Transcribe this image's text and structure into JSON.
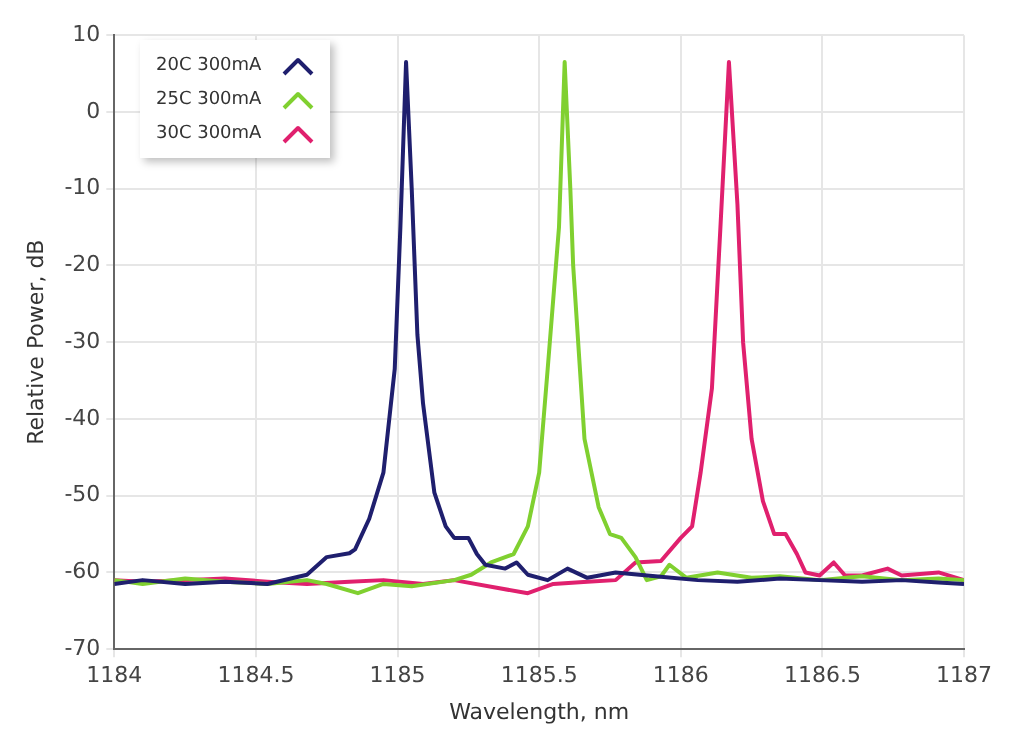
{
  "chart_data": {
    "type": "line",
    "xlabel": "Wavelength, nm",
    "ylabel": "Relative Power, dB",
    "xlim": [
      1184,
      1187
    ],
    "xticks": [
      1184,
      1184.5,
      1185,
      1185.5,
      1186,
      1186.5,
      1187
    ],
    "ylim": [
      -70,
      10
    ],
    "yticks": [
      -70,
      -60,
      -50,
      -40,
      -30,
      -20,
      -10,
      0,
      10
    ],
    "grid": true,
    "legend": "top left",
    "marker": "none",
    "line_style": "solid",
    "series": [
      {
        "name": "20C 300mA",
        "color": "#1f1f6e",
        "x": [
          1184,
          1184.1,
          1184.25,
          1184.39,
          1184.54,
          1184.68,
          1184.75,
          1184.83,
          1184.85,
          1184.9,
          1184.95,
          1184.99,
          1185.01,
          1185.03,
          1185.05,
          1185.07,
          1185.09,
          1185.13,
          1185.17,
          1185.2,
          1185.25,
          1185.28,
          1185.31,
          1185.38,
          1185.42,
          1185.46,
          1185.53,
          1185.6,
          1185.67,
          1185.77,
          1185.91,
          1186.06,
          1186.2,
          1186.35,
          1186.49,
          1186.64,
          1186.78,
          1186.91,
          1187
        ],
        "values": [
          -61.5,
          -61,
          -61.5,
          -61.2,
          -61.5,
          -60.3,
          -58,
          -57.5,
          -57,
          -53,
          -47,
          -33.5,
          -15,
          6.5,
          -10,
          -29,
          -38,
          -49.6,
          -54,
          -55.5,
          -55.5,
          -57.6,
          -59,
          -59.5,
          -58.7,
          -60.3,
          -61,
          -59.5,
          -60.7,
          -60,
          -60.5,
          -61,
          -61.2,
          -60.8,
          -61,
          -61.2,
          -61,
          -61.3,
          -61.5
        ]
      },
      {
        "name": "25C 300mA",
        "color": "#80d030",
        "x": [
          1184,
          1184.1,
          1184.25,
          1184.39,
          1184.54,
          1184.68,
          1184.75,
          1184.86,
          1184.95,
          1185.05,
          1185.2,
          1185.26,
          1185.33,
          1185.41,
          1185.46,
          1185.5,
          1185.53,
          1185.57,
          1185.59,
          1185.61,
          1185.62,
          1185.66,
          1185.71,
          1185.75,
          1185.79,
          1185.84,
          1185.88,
          1185.93,
          1185.96,
          1186.02,
          1186.13,
          1186.25,
          1186.35,
          1186.49,
          1186.64,
          1186.78,
          1186.91,
          1187
        ],
        "values": [
          -61,
          -61.5,
          -60.8,
          -61.2,
          -61.5,
          -61,
          -61.5,
          -62.7,
          -61.5,
          -61.8,
          -61,
          -60.3,
          -58.7,
          -57.6,
          -54,
          -47,
          -33.5,
          -15,
          6.5,
          -10,
          -20,
          -42.6,
          -51.5,
          -55,
          -55.5,
          -58,
          -61,
          -60.5,
          -59,
          -60.7,
          -60,
          -60.7,
          -60.5,
          -61,
          -60.5,
          -61,
          -60.8,
          -61
        ]
      },
      {
        "name": "30C 300mA",
        "color": "#e0206e",
        "x": [
          1184,
          1184.1,
          1184.25,
          1184.39,
          1184.54,
          1184.68,
          1184.83,
          1184.95,
          1185.09,
          1185.2,
          1185.35,
          1185.46,
          1185.55,
          1185.67,
          1185.77,
          1185.84,
          1185.93,
          1186,
          1186.04,
          1186.07,
          1186.11,
          1186.14,
          1186.17,
          1186.2,
          1186.22,
          1186.25,
          1186.29,
          1186.33,
          1186.37,
          1186.41,
          1186.44,
          1186.49,
          1186.54,
          1186.58,
          1186.64,
          1186.73,
          1186.78,
          1186.91,
          1187
        ],
        "values": [
          -61,
          -61.2,
          -61,
          -60.8,
          -61.2,
          -61.5,
          -61.2,
          -61,
          -61.5,
          -61,
          -62,
          -62.7,
          -61.5,
          -61.2,
          -61,
          -58.7,
          -58.5,
          -55.5,
          -54,
          -47,
          -36,
          -15,
          6.5,
          -12,
          -30,
          -42.6,
          -50.7,
          -55,
          -55,
          -57.6,
          -60,
          -60.4,
          -58.7,
          -60.4,
          -60.4,
          -59.5,
          -60.4,
          -60,
          -61
        ]
      }
    ]
  }
}
